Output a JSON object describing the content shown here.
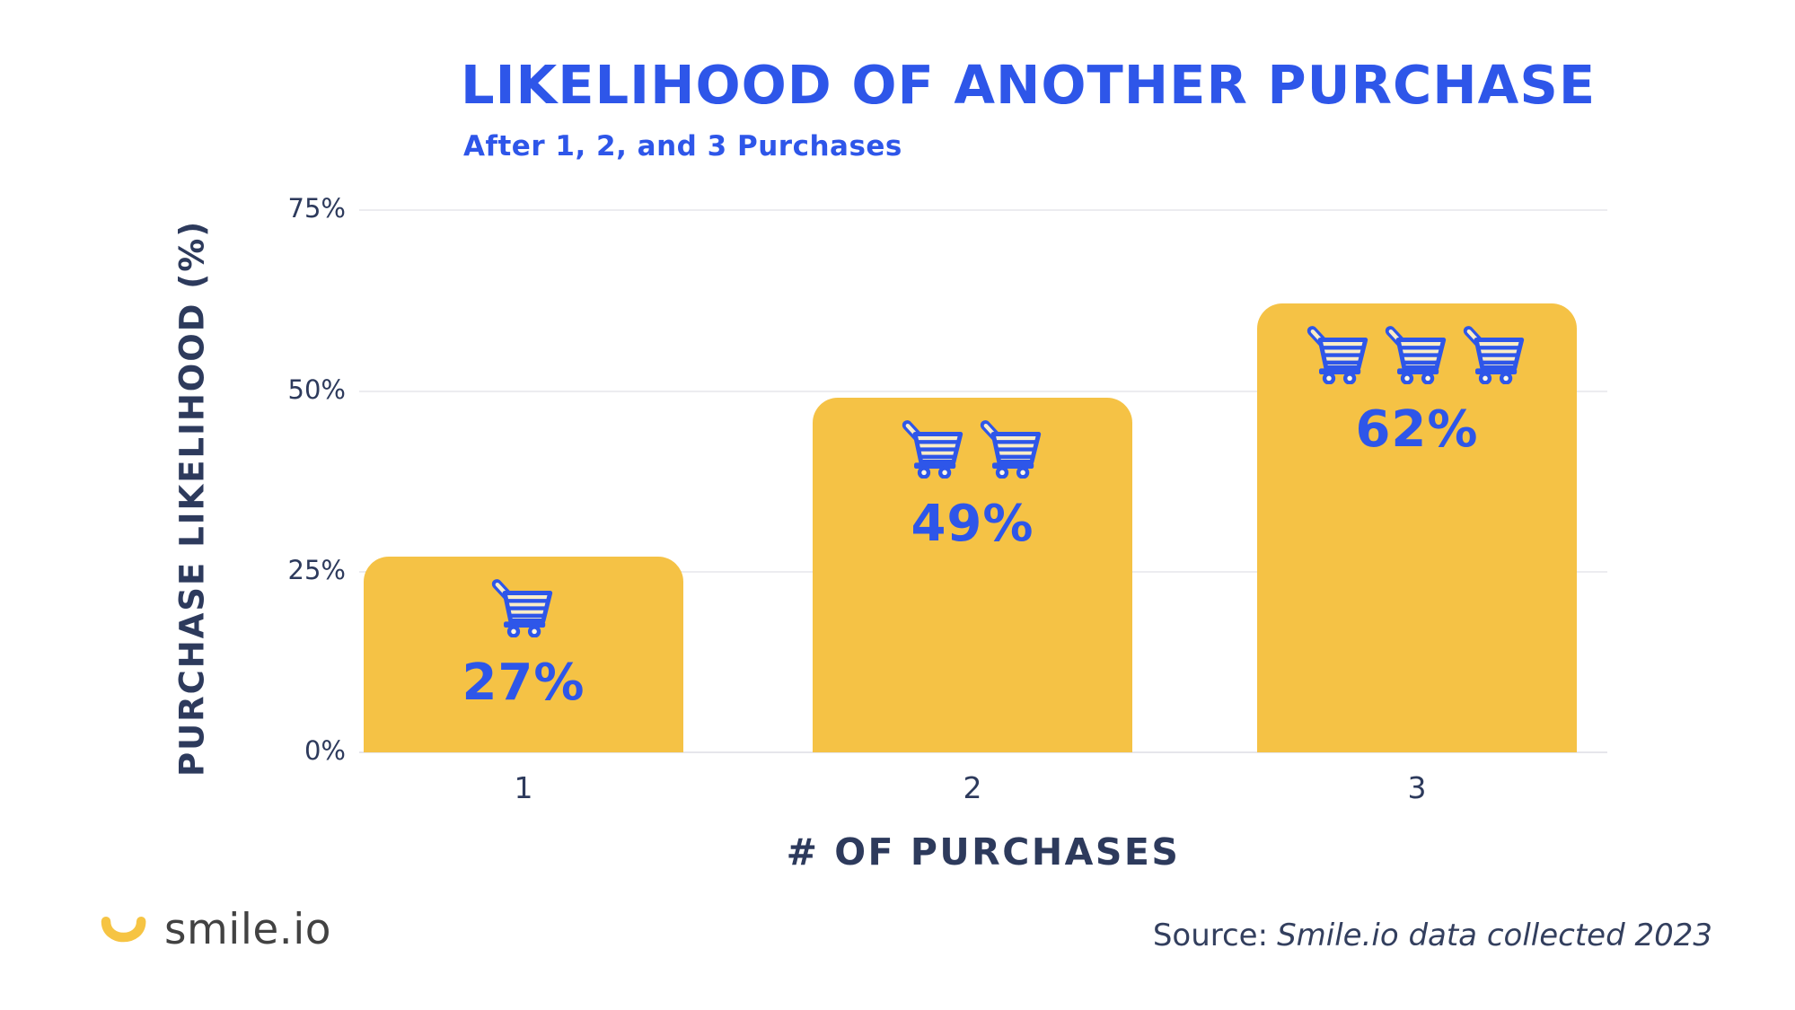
{
  "header": {
    "title": "LIKELIHOOD OF ANOTHER PURCHASE",
    "subtitle": "After 1, 2, and 3 Purchases"
  },
  "chart": {
    "y_axis": {
      "title": "PURCHASE LIKELIHOOD (%)",
      "ticks": {
        "t75": "75%",
        "t50": "50%",
        "t25": "25%",
        "t0": "0%"
      }
    },
    "x_axis": {
      "title": "# OF PURCHASES",
      "ticks": {
        "x1": "1",
        "x2": "2",
        "x3": "3"
      }
    },
    "bars": [
      {
        "category": "1",
        "value": 27,
        "label": "27%",
        "carts": 1
      },
      {
        "category": "2",
        "value": 49,
        "label": "49%",
        "carts": 2
      },
      {
        "category": "3",
        "value": 62,
        "label": "62%",
        "carts": 3
      }
    ]
  },
  "chart_data": {
    "type": "bar",
    "categories": [
      "1",
      "2",
      "3"
    ],
    "values": [
      27,
      49,
      62
    ],
    "data_labels": [
      "27%",
      "49%",
      "62%"
    ],
    "title": "LIKELIHOOD OF ANOTHER PURCHASE",
    "subtitle": "After 1, 2, and 3 Purchases",
    "xlabel": "# OF PURCHASES",
    "ylabel": "PURCHASE LIKELIHOOD (%)",
    "ylim": [
      0,
      75
    ],
    "yticks": [
      "0%",
      "25%",
      "50%",
      "75%"
    ],
    "grid": true,
    "legend": false,
    "bar_color": "#F5C245",
    "label_color": "#2E56E9",
    "axis_text_color": "#2D3A5C",
    "bar_icon": "shopping-cart, repeated once per purchase count"
  },
  "footer": {
    "logo_text": "smile.io",
    "source_prefix": "Source:",
    "source_text": "Smile.io data collected 2023"
  },
  "colors": {
    "accent_blue": "#2E56E9",
    "bar_yellow": "#F5C245",
    "cart_cream": "#FAEDC8",
    "navy_text": "#2D3A5C",
    "gridline": "#ECECF0",
    "logo_gray": "#424242",
    "logo_smile_yellow": "#F6C443",
    "background": "#FFFFFF"
  }
}
